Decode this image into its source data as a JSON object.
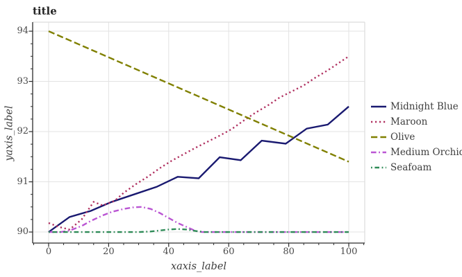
{
  "figure": {
    "background": "#ffffff",
    "title": "title",
    "xlabel": "xaxis_label",
    "ylabel": "yaxis_label"
  },
  "colors": {
    "grid": "#e3e3e3",
    "spine_dark": "#2b2b2b",
    "spine_light": "#dcdcdc",
    "tick": "#2b2b2b",
    "tick_text": "#4a4a4a",
    "title_text": "#262626",
    "legend_text": "#3d3d3d"
  },
  "chart_data": {
    "type": "line",
    "title": "title",
    "xlabel": "xaxis_label",
    "ylabel": "yaxis_label",
    "xlim": [
      -5.32,
      105.32
    ],
    "ylim": [
      89.78,
      94.18
    ],
    "grid": true,
    "legend_position": "center-right-outside",
    "x_major_ticks": [
      0,
      20,
      40,
      60,
      80,
      100
    ],
    "x_tick_labels": [
      "0",
      "20",
      "40",
      "60",
      "80",
      "100"
    ],
    "x_minor_step": 5,
    "y_major_ticks": [
      90,
      91,
      92,
      93,
      94
    ],
    "y_tick_labels": [
      "90",
      "91",
      "92",
      "93",
      "94"
    ],
    "y_minor_step": 0.25,
    "series": [
      {
        "name": "Midnight Blue",
        "color": "#191970",
        "style": "solid",
        "x": [
          0,
          7,
          14,
          21,
          29,
          36,
          43,
          50,
          57,
          64,
          71,
          79,
          86,
          93,
          100
        ],
        "y": [
          90.0,
          90.3,
          90.42,
          90.6,
          90.76,
          90.9,
          91.1,
          91.07,
          91.49,
          91.43,
          91.82,
          91.76,
          92.06,
          92.14,
          92.5
        ]
      },
      {
        "name": "Maroon",
        "color": "#B03060",
        "style": "dotted",
        "x": [
          0,
          3.5,
          7,
          11,
          15,
          18,
          22,
          25,
          29,
          33,
          37,
          41,
          45,
          49,
          53,
          57,
          61,
          65,
          69,
          73,
          77,
          81,
          85,
          89,
          93,
          97,
          100
        ],
        "y": [
          90.18,
          90.1,
          90.05,
          90.25,
          90.6,
          90.53,
          90.62,
          90.78,
          90.95,
          91.1,
          91.27,
          91.42,
          91.55,
          91.68,
          91.8,
          91.92,
          92.05,
          92.22,
          92.38,
          92.52,
          92.68,
          92.8,
          92.92,
          93.08,
          93.22,
          93.38,
          93.5
        ]
      },
      {
        "name": "Olive",
        "color": "#808000",
        "style": "dashed",
        "x": [
          0,
          100
        ],
        "y": [
          94.0,
          91.4
        ]
      },
      {
        "name": "Medium Orchid",
        "color": "#BA55D3",
        "style": "dashdot",
        "x": [
          0,
          4,
          7,
          11,
          14,
          18,
          21,
          25,
          28,
          31,
          34,
          37,
          40,
          43,
          46,
          49,
          51,
          60,
          70,
          80,
          90,
          100
        ],
        "y": [
          90.0,
          90.0,
          90.03,
          90.12,
          90.22,
          90.33,
          90.4,
          90.46,
          90.49,
          90.5,
          90.46,
          90.38,
          90.28,
          90.18,
          90.1,
          90.02,
          90.0,
          90.0,
          90.0,
          90.0,
          90.0,
          90.0
        ]
      },
      {
        "name": "Seafoam",
        "color": "#2E8B57",
        "style": "dotdash",
        "x": [
          0,
          10,
          20,
          30,
          34,
          37,
          40,
          43,
          46,
          49,
          52,
          60,
          70,
          80,
          90,
          100
        ],
        "y": [
          90.0,
          90.0,
          90.0,
          90.0,
          90.01,
          90.03,
          90.05,
          90.06,
          90.05,
          90.02,
          90.0,
          90.0,
          90.0,
          90.0,
          90.0,
          90.0
        ]
      }
    ],
    "legend_entries": [
      "Midnight Blue",
      "Maroon",
      "Olive",
      "Medium Orchid",
      "Seafoam"
    ]
  }
}
